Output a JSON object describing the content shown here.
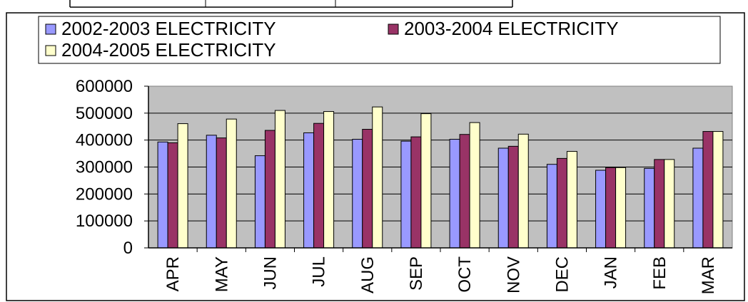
{
  "chart_data": {
    "type": "bar",
    "title": "",
    "xlabel": "",
    "ylabel": "",
    "categories": [
      "APR",
      "MAY",
      "JUN",
      "JUL",
      "AUG",
      "SEP",
      "OCT",
      "NOV",
      "DEC",
      "JAN",
      "FEB",
      "MAR"
    ],
    "series": [
      {
        "name": "2002-2003 ELECTRICITY",
        "color": "#9999ff",
        "values": [
          393000,
          418000,
          342000,
          427000,
          403000,
          396000,
          403000,
          370000,
          310000,
          288000,
          295000,
          370000
        ]
      },
      {
        "name": "2003-2004 ELECTRICITY",
        "color": "#993366",
        "values": [
          390000,
          408000,
          436000,
          462000,
          440000,
          412000,
          421000,
          377000,
          332000,
          298000,
          328000,
          432000
        ]
      },
      {
        "name": "2004-2005 ELECTRICITY",
        "color": "#ffffcc",
        "values": [
          461000,
          478000,
          510000,
          506000,
          523000,
          498000,
          465000,
          422000,
          358000,
          298000,
          328000,
          432000
        ]
      }
    ],
    "yticks": [
      "0",
      "100000",
      "200000",
      "300000",
      "400000",
      "500000",
      "600000"
    ],
    "ylim": [
      0,
      600000
    ],
    "grid": true,
    "plot_background": "#c0c0c0",
    "legend_position": "top"
  }
}
